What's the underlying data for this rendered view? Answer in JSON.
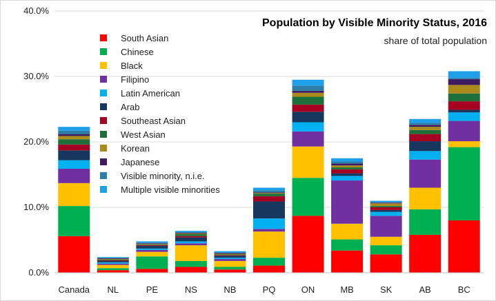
{
  "chart_data": {
    "type": "bar",
    "stacked": true,
    "title": "Population by Visible Minority Status, 2016",
    "subtitle": "share of total population",
    "xlabel": "",
    "ylabel": "",
    "ylim": [
      0,
      40
    ],
    "yticks": [
      "0.0%",
      "10.0%",
      "20.0%",
      "30.0%",
      "40.0%"
    ],
    "grid": true,
    "legend_position": "top-left",
    "categories": [
      "Canada",
      "NL",
      "PE",
      "NS",
      "NB",
      "PQ",
      "ON",
      "MB",
      "SK",
      "AB",
      "BC"
    ],
    "series": [
      {
        "name": "South Asian",
        "color": "#ff0000",
        "values": [
          5.6,
          0.4,
          0.6,
          0.9,
          0.5,
          1.1,
          8.7,
          3.4,
          2.8,
          5.8,
          8.0
        ]
      },
      {
        "name": "Chinese",
        "color": "#00b050",
        "values": [
          4.6,
          0.3,
          1.9,
          0.9,
          0.4,
          1.2,
          5.8,
          1.7,
          1.4,
          3.9,
          11.2
        ]
      },
      {
        "name": "Black",
        "color": "#ffc000",
        "values": [
          3.5,
          0.5,
          0.7,
          2.4,
          0.9,
          4.0,
          4.8,
          2.4,
          1.3,
          3.3,
          0.9
        ]
      },
      {
        "name": "Filipino",
        "color": "#7030a0",
        "values": [
          2.2,
          0.2,
          0.3,
          0.3,
          0.3,
          0.4,
          2.3,
          6.6,
          3.2,
          4.3,
          3.1
        ]
      },
      {
        "name": "Latin American",
        "color": "#00b0f0",
        "values": [
          1.3,
          0.2,
          0.2,
          0.3,
          0.2,
          1.6,
          1.4,
          0.7,
          0.6,
          1.3,
          1.3
        ]
      },
      {
        "name": "Arab",
        "color": "#17375e",
        "values": [
          1.5,
          0.2,
          0.4,
          0.6,
          0.3,
          2.6,
          1.6,
          0.4,
          0.3,
          1.5,
          0.4
        ]
      },
      {
        "name": "Southeast Asian",
        "color": "#a50021",
        "values": [
          0.9,
          0.1,
          0.1,
          0.2,
          0.1,
          0.8,
          1.1,
          0.6,
          0.4,
          1.1,
          1.3
        ]
      },
      {
        "name": "West Asian",
        "color": "#1f6f3a",
        "values": [
          0.8,
          0.1,
          0.1,
          0.3,
          0.1,
          0.4,
          1.2,
          0.3,
          0.2,
          0.6,
          1.2
        ]
      },
      {
        "name": "Korean",
        "color": "#a98a1b",
        "values": [
          0.5,
          0.1,
          0.1,
          0.1,
          0.1,
          0.1,
          0.6,
          0.3,
          0.4,
          0.5,
          1.3
        ]
      },
      {
        "name": "Japanese",
        "color": "#3f1c62",
        "values": [
          0.3,
          0.1,
          0.1,
          0.1,
          0.1,
          0.1,
          0.3,
          0.3,
          0.1,
          0.3,
          0.9
        ]
      },
      {
        "name": "Visible minority, n.i.e.",
        "color": "#2e7fa7",
        "values": [
          0.5,
          0.1,
          0.1,
          0.1,
          0.1,
          0.3,
          0.8,
          0.3,
          0.1,
          0.3,
          0.2
        ]
      },
      {
        "name": "Multiple visible minorities",
        "color": "#1f9fe8",
        "values": [
          0.6,
          0.1,
          0.2,
          0.2,
          0.2,
          0.4,
          0.9,
          0.5,
          0.2,
          0.6,
          1.0
        ]
      }
    ]
  }
}
